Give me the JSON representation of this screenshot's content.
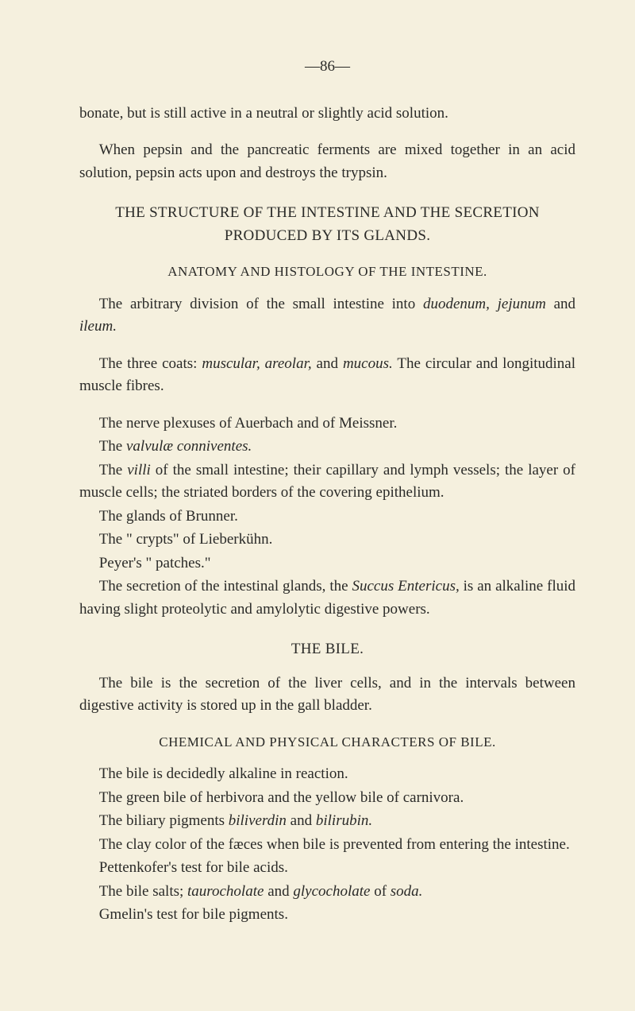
{
  "page_number": "—86—",
  "para1": "bonate, but is still active in a neutral or slightly acid solution.",
  "para2_pre": "When pepsin and the pancreatic ferments are mixed together in an acid solution, pepsin acts upon and destroys the trypsin.",
  "heading1": "THE STRUCTURE OF THE INTESTINE AND THE SECRETION PRODUCED BY ITS GLANDS.",
  "subheading1": "ANATOMY AND HISTOLOGY OF THE INTESTINE.",
  "para3_pre": "The arbitrary division of the small intestine into ",
  "para3_italic1": "duodenum, jejunum",
  "para3_mid1": " and ",
  "para3_italic2": "ileum.",
  "para4_pre": "The three coats: ",
  "para4_italic1": "muscular, areolar,",
  "para4_mid1": " and ",
  "para4_italic2": "mucous.",
  "para4_post": " The circular and longitudinal muscle fibres.",
  "list1": "The nerve plexuses of Auerbach and of Meissner.",
  "list2_pre": "The ",
  "list2_italic": "valvulæ conniventes.",
  "list3_pre": "The ",
  "list3_italic": "villi",
  "list3_post": " of the small intestine; their capillary and lymph vessels; the layer of muscle cells; the striated borders of the covering epithelium.",
  "list4": "The glands of Brunner.",
  "list5": "The \" crypts\" of Lieberkühn.",
  "list6": "Peyer's \" patches.\"",
  "para5_pre": "The secretion of the intestinal glands, the ",
  "para5_italic": "Succus Entericus,",
  "para5_post": " is an alkaline fluid having slight proteolytic and amylolytic digestive powers.",
  "heading2": "THE BILE.",
  "para6": "The bile is the secretion of the liver cells, and in the intervals between digestive activity is stored up in the gall bladder.",
  "subheading2": "CHEMICAL AND PHYSICAL CHARACTERS OF BILE.",
  "list7": "The bile is decidedly alkaline in reaction.",
  "list8": "The green bile of herbivora and the yellow bile of carnivora.",
  "list9_pre": "The biliary pigments ",
  "list9_italic1": "biliverdin",
  "list9_mid": " and ",
  "list9_italic2": "bilirubin.",
  "list10": "The clay color of the fæces when bile is prevented from entering the intestine.",
  "list11": "Pettenkofer's test for bile acids.",
  "list12_pre": "The bile salts; ",
  "list12_italic1": "taurocholate",
  "list12_mid": " and ",
  "list12_italic2": "glycocholate",
  "list12_mid2": " of ",
  "list12_italic3": "soda.",
  "list13": "Gmelin's test for bile pigments.",
  "colors": {
    "bg": "#f5f0de",
    "text": "#2a2a28"
  },
  "typography": {
    "font_family": "Georgia, Times New Roman, serif",
    "body_size": 19,
    "heading_size": 19,
    "sub_heading_size": 17,
    "line_height": 1.5
  }
}
